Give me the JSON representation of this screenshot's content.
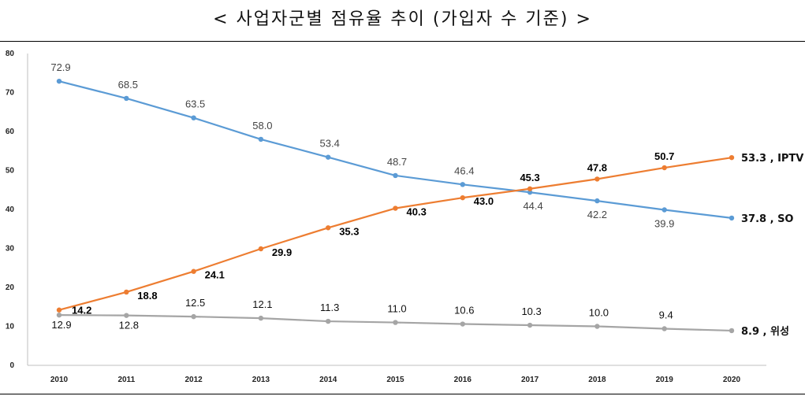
{
  "title": "< 사업자군별 점유율 추이 (가입자 수 기준) >",
  "chart_data": {
    "type": "line",
    "x": [
      "2010",
      "2011",
      "2012",
      "2013",
      "2014",
      "2015",
      "2016",
      "2017",
      "2018",
      "2019",
      "2020"
    ],
    "ylim": [
      0,
      80
    ],
    "yticks": [
      "0",
      "10",
      "20",
      "30",
      "40",
      "50",
      "60",
      "70",
      "80"
    ],
    "grid": false,
    "series": [
      {
        "name": "SO",
        "color": "#5b9bd5",
        "values": [
          72.9,
          68.5,
          63.5,
          58.0,
          53.4,
          48.7,
          46.4,
          44.4,
          42.2,
          39.9,
          37.8
        ],
        "labels": [
          "72.9",
          "68.5",
          "63.5",
          "58.0",
          "53.4",
          "48.7",
          "46.4",
          "44.4",
          "42.2",
          "39.9",
          "37.8 , SO"
        ]
      },
      {
        "name": "IPTV",
        "color": "#ed7d31",
        "values": [
          14.2,
          18.8,
          24.1,
          29.9,
          35.3,
          40.3,
          43.0,
          45.3,
          47.8,
          50.7,
          53.3
        ],
        "labels": [
          "14.2",
          "18.8",
          "24.1",
          "29.9",
          "35.3",
          "40.3",
          "43.0",
          "45.3",
          "47.8",
          "50.7",
          "53.3 , IPTV"
        ]
      },
      {
        "name": "위성",
        "color": "#a5a5a5",
        "values": [
          12.9,
          12.8,
          12.5,
          12.1,
          11.3,
          11.0,
          10.6,
          10.3,
          10.0,
          9.4,
          8.9
        ],
        "labels": [
          "12.9",
          "12.8",
          "12.5",
          "12.1",
          "11.3",
          "11.0",
          "10.6",
          "10.3",
          "10.0",
          "9.4",
          "8.9 , 위성"
        ]
      }
    ]
  }
}
